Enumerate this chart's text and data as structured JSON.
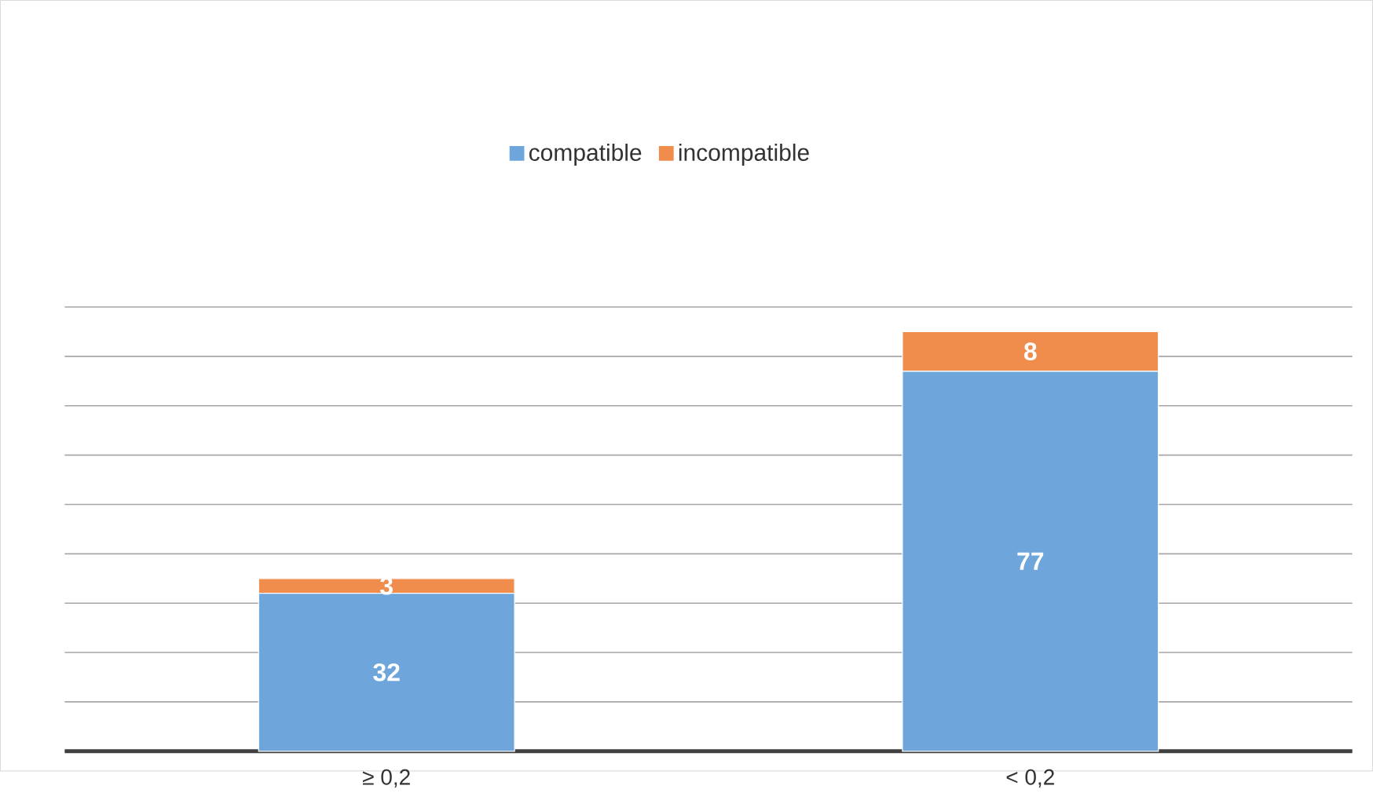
{
  "chart_data": {
    "type": "bar",
    "stacked": true,
    "categories": [
      "≥ 0,2",
      "< 0,2"
    ],
    "series": [
      {
        "name": "compatible",
        "color": "#6ea6dc",
        "values": [
          32,
          77
        ]
      },
      {
        "name": "incompatible",
        "color": "#f08c4c",
        "values": [
          3,
          8
        ]
      }
    ],
    "ylim": [
      0,
      90
    ],
    "yticks": [
      {
        "value": 0,
        "label": null
      },
      {
        "value": 10,
        "label": null
      },
      {
        "value": 20,
        "label": null
      },
      {
        "value": 30,
        "label": null
      },
      {
        "value": 40,
        "label": null
      },
      {
        "value": 50,
        "label": null
      },
      {
        "value": 60,
        "label": null
      },
      {
        "value": 70,
        "label": null
      },
      {
        "value": 80,
        "label": null
      },
      {
        "value": 90,
        "label": null
      }
    ],
    "tick_labels": "x",
    "grid": "y",
    "legend": "top",
    "data_labels": true
  }
}
